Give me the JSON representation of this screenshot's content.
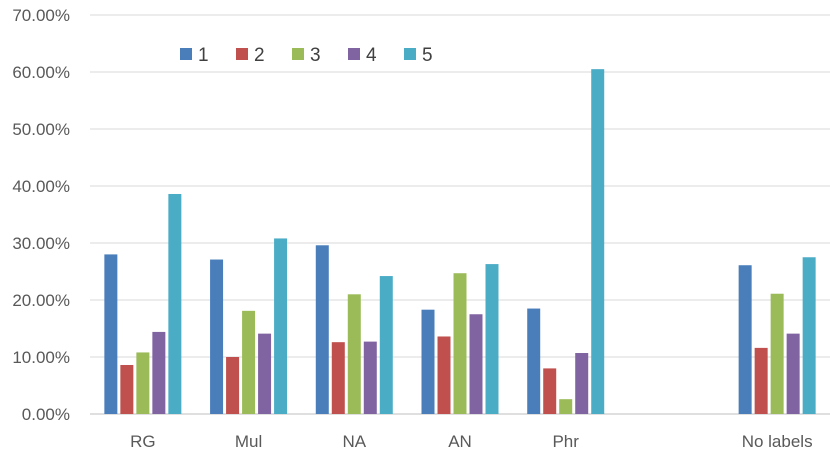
{
  "chart_data": {
    "type": "bar",
    "title": "",
    "xlabel": "",
    "ylabel": "",
    "ylim": [
      0,
      70
    ],
    "y_ticks": [
      0,
      10,
      20,
      30,
      40,
      50,
      60,
      70
    ],
    "y_tick_labels": [
      "0.00%",
      "10.00%",
      "20.00%",
      "30.00%",
      "40.00%",
      "50.00%",
      "60.00%",
      "70.00%"
    ],
    "grid": true,
    "legend_position": "top-left",
    "categories": [
      "RG",
      "Mul",
      "NA",
      "AN",
      "Phr",
      "",
      "No labels"
    ],
    "series": [
      {
        "name": "1",
        "color": "#4a7ebb",
        "values": [
          28.0,
          27.1,
          29.6,
          18.3,
          18.5,
          null,
          26.1
        ]
      },
      {
        "name": "2",
        "color": "#c0504d",
        "values": [
          8.6,
          10.0,
          12.6,
          13.6,
          8.0,
          null,
          11.6
        ]
      },
      {
        "name": "3",
        "color": "#9bbb59",
        "values": [
          10.8,
          18.1,
          21.0,
          24.7,
          2.6,
          null,
          21.1
        ]
      },
      {
        "name": "4",
        "color": "#8064a2",
        "values": [
          14.4,
          14.1,
          12.7,
          17.5,
          10.7,
          null,
          14.1
        ]
      },
      {
        "name": "5",
        "color": "#4bacc6",
        "values": [
          38.6,
          30.8,
          24.2,
          26.3,
          60.5,
          null,
          27.5
        ]
      }
    ]
  }
}
